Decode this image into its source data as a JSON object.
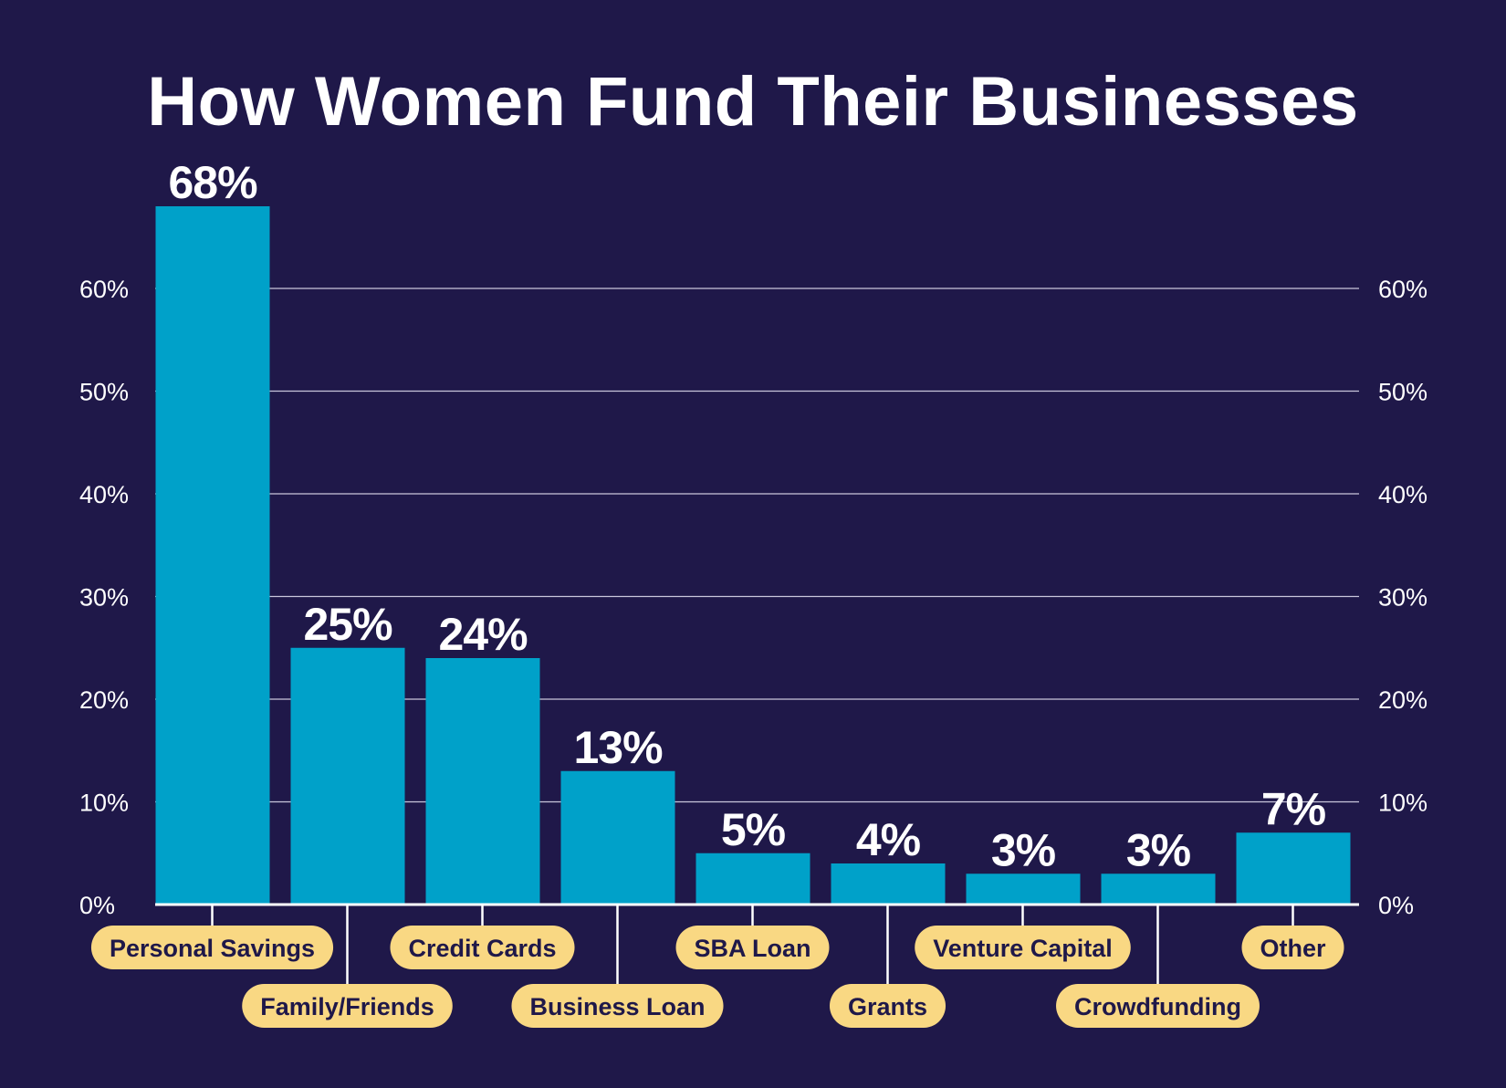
{
  "chart_data": {
    "type": "bar",
    "title": "How Women Fund Their Businesses",
    "categories": [
      "Personal Savings",
      "Family/Friends",
      "Credit Cards",
      "Business Loan",
      "SBA Loan",
      "Grants",
      "Venture Capital",
      "Crowdfunding",
      "Other"
    ],
    "values": [
      68,
      25,
      24,
      13,
      5,
      4,
      3,
      3,
      7
    ],
    "data_labels": [
      "68%",
      "25%",
      "24%",
      "13%",
      "5%",
      "4%",
      "3%",
      "3%",
      "7%"
    ],
    "ylim": [
      0,
      70
    ],
    "yticks": [
      0,
      10,
      20,
      30,
      40,
      50,
      60
    ],
    "ytick_labels": [
      "0%",
      "10%",
      "20%",
      "30%",
      "40%",
      "50%",
      "60%"
    ],
    "axes": "left and right",
    "grid": true,
    "colors": {
      "background": "#1f1849",
      "bar": "#00a1c9",
      "label_pill": "#f9d883",
      "label_text": "#1f1849",
      "grid": "#c9c6dc",
      "text": "#ffffff"
    }
  }
}
